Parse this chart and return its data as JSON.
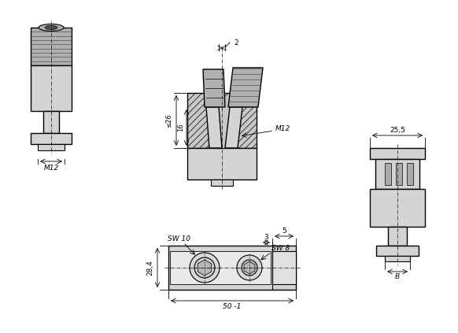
{
  "bg_color": "#ffffff",
  "line_color": "#000000",
  "fill_light": "#d4d4d4",
  "fill_medium": "#b0b0b0",
  "fill_dark": "#505050",
  "annotations": {
    "dim_2": "2",
    "dim_255": "25,5",
    "dim_26": "≤26",
    "dim_16": "16",
    "dim_M12_center": "M12",
    "dim_M12_left": "M12",
    "dim_5": "5",
    "dim_3": "3",
    "dim_SW10": "SW 10",
    "dim_SW8": "SW 8",
    "dim_284": "28,4",
    "dim_50": "50 -1",
    "dim_B": "B"
  }
}
